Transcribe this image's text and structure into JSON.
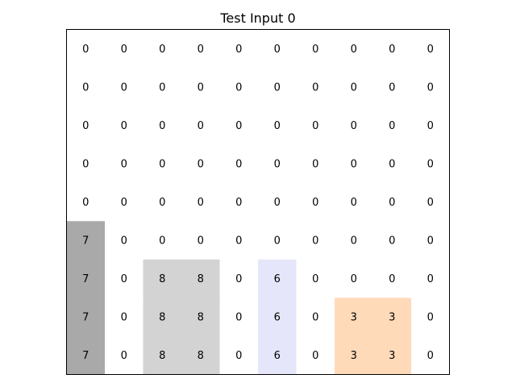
{
  "chart_data": {
    "type": "heatmap",
    "title": "Test Input 0",
    "rows": 9,
    "cols": 10,
    "grid": false,
    "values": [
      [
        0,
        0,
        0,
        0,
        0,
        0,
        0,
        0,
        0,
        0
      ],
      [
        0,
        0,
        0,
        0,
        0,
        0,
        0,
        0,
        0,
        0
      ],
      [
        0,
        0,
        0,
        0,
        0,
        0,
        0,
        0,
        0,
        0
      ],
      [
        0,
        0,
        0,
        0,
        0,
        0,
        0,
        0,
        0,
        0
      ],
      [
        0,
        0,
        0,
        0,
        0,
        0,
        0,
        0,
        0,
        0
      ],
      [
        7,
        0,
        0,
        0,
        0,
        0,
        0,
        0,
        0,
        0
      ],
      [
        7,
        0,
        8,
        8,
        0,
        6,
        0,
        0,
        0,
        0
      ],
      [
        7,
        0,
        8,
        8,
        0,
        6,
        0,
        3,
        3,
        0
      ],
      [
        7,
        0,
        8,
        8,
        0,
        6,
        0,
        3,
        3,
        0
      ]
    ],
    "colors": {
      "0": "#ffffff",
      "7": "#a9a9a9",
      "8": "#d3d3d3",
      "6": "#e6e6fa",
      "3": "#ffdab9"
    }
  }
}
